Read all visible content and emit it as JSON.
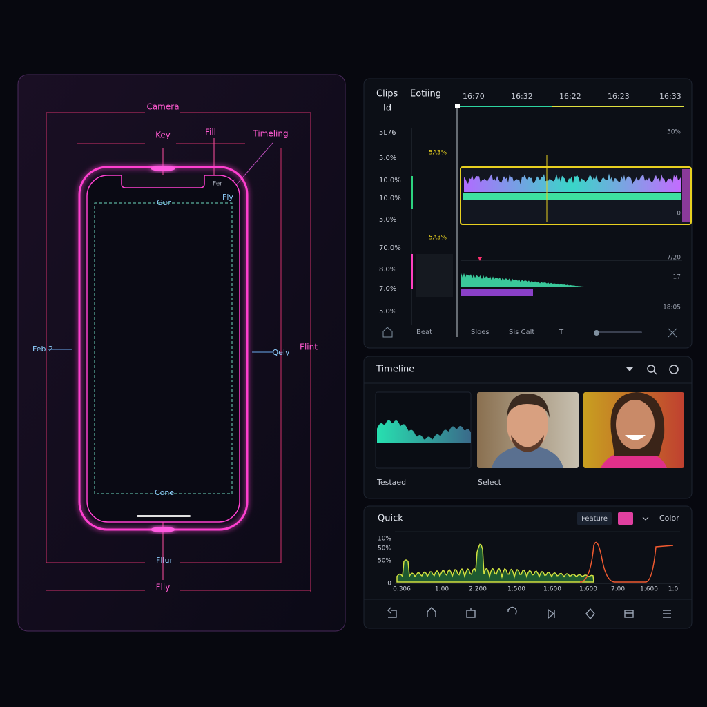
{
  "phone": {
    "camera": "Camera",
    "key": "Key",
    "fill": "Fill",
    "timeling": "Timeling",
    "fer": "Fer",
    "fly": "Fly",
    "gur": "Gur",
    "feb": "Feb 2",
    "qely": "Qely",
    "flint": "Flint",
    "cone": "Cone",
    "fllur": "Fllur",
    "flly": "Flly"
  },
  "editor": {
    "clips": "Clips",
    "id": "Id",
    "editing": "Eotiing",
    "times": [
      "16:70",
      "16:32",
      "16:22",
      "16:23",
      "16:33"
    ],
    "left_labels": [
      "5L76",
      "5.0%",
      "10.0%",
      "10.0%",
      "5.0%",
      "70.0%",
      "8.0%",
      "7.0%",
      "5.0%"
    ],
    "markers": [
      "5A3%",
      "5A3%"
    ],
    "right_labels": [
      "50%",
      "0",
      "7/20",
      "17",
      "18:05"
    ],
    "toolbar": [
      "Beat",
      "Sloes",
      "Sis Calt",
      "T"
    ]
  },
  "timeline": {
    "title": "Timeline",
    "captions": [
      "Testaed",
      "Select"
    ]
  },
  "quick": {
    "title": "Quick",
    "feature": "Feature",
    "color": "Color",
    "y_labels": [
      "10%",
      "50%",
      "50%",
      "0"
    ],
    "x_labels": [
      "0.306",
      "1:00",
      "2:200",
      "1:500",
      "1:600",
      "1:600",
      "7:00",
      "1:600",
      "1:0"
    ]
  }
}
